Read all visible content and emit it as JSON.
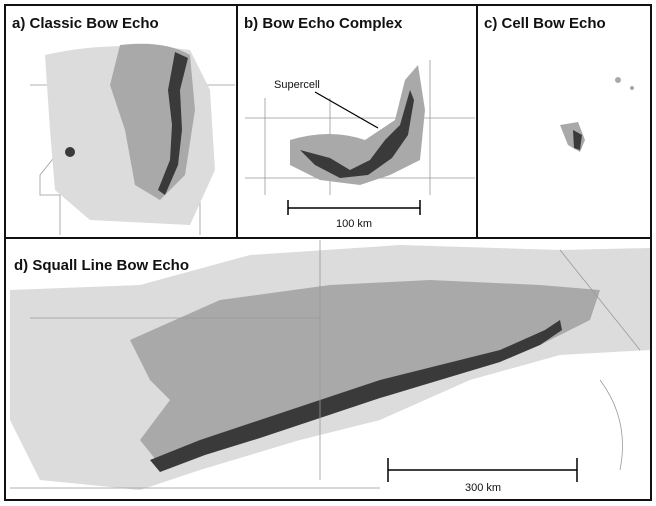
{
  "panels": [
    {
      "title": "a)  Classic Bow Echo"
    },
    {
      "title": "b) Bow Echo Complex",
      "annotation": "Supercell",
      "scale": "100 km"
    },
    {
      "title": "c) Cell Bow Echo"
    },
    {
      "title": "d) Squall Line Bow Echo",
      "scale": "300 km"
    }
  ]
}
